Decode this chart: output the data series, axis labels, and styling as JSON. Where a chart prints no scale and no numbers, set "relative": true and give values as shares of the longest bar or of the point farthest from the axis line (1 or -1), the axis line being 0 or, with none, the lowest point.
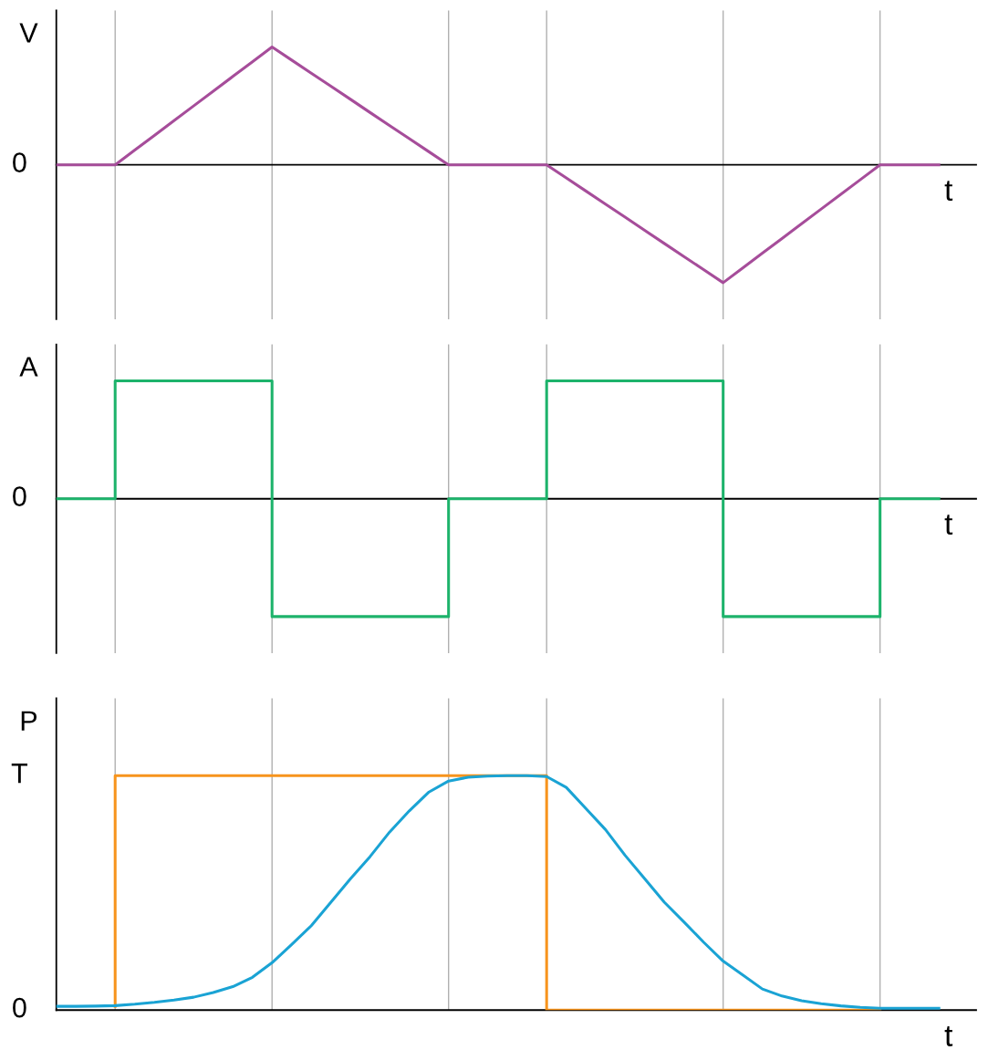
{
  "chart_data": [
    {
      "type": "line",
      "ylabel": "V",
      "xlabel": "t",
      "relative": true,
      "annotations": [
        "0"
      ],
      "tick_labels": false,
      "grid": "x",
      "categories": [
        null,
        null,
        null,
        null,
        null,
        null,
        null,
        null,
        null,
        null,
        null,
        null,
        null,
        null,
        null,
        null,
        null,
        null,
        null,
        null,
        null,
        null,
        null,
        null,
        null,
        null,
        null,
        null,
        null,
        null,
        null,
        null,
        null,
        null,
        null,
        null,
        null,
        null,
        null,
        null,
        null,
        null,
        null,
        null,
        null,
        null
      ],
      "series": [
        {
          "color": "#a64d9a",
          "values": [
            0,
            0,
            0,
            0,
            0.125,
            0.25,
            0.375,
            0.5,
            0.625,
            0.75,
            0.875,
            1,
            0.889,
            0.778,
            0.667,
            0.556,
            0.444,
            0.333,
            0.222,
            0.111,
            0,
            0,
            0,
            0,
            0,
            0,
            -0.111,
            -0.222,
            -0.333,
            -0.444,
            -0.556,
            -0.667,
            -0.778,
            -0.889,
            -1,
            -0.875,
            -0.75,
            -0.625,
            -0.5,
            -0.375,
            -0.25,
            -0.125,
            0,
            0,
            0,
            0
          ]
        }
      ]
    },
    {
      "type": "step",
      "ylabel": "A",
      "xlabel": "t",
      "relative": true,
      "annotations": [
        "0"
      ],
      "tick_labels": false,
      "grid": "x",
      "categories": [
        null,
        null,
        null,
        null,
        null,
        null,
        null,
        null,
        null,
        null,
        null,
        null,
        null,
        null,
        null,
        null,
        null,
        null,
        null,
        null,
        null,
        null,
        null,
        null,
        null,
        null,
        null,
        null,
        null,
        null,
        null,
        null,
        null,
        null,
        null,
        null,
        null,
        null,
        null,
        null,
        null,
        null,
        null,
        null,
        null,
        null
      ],
      "series": [
        {
          "color": "#1db36b",
          "values": [
            0,
            0,
            0,
            0,
            1,
            1,
            1,
            1,
            1,
            1,
            1,
            1,
            -1,
            -1,
            -1,
            -1,
            -1,
            -1,
            -1,
            -1,
            -1,
            0,
            0,
            0,
            0,
            0,
            1,
            1,
            1,
            1,
            1,
            1,
            1,
            1,
            1,
            -1,
            -1,
            -1,
            -1,
            -1,
            -1,
            -1,
            -1,
            0,
            0,
            0
          ]
        }
      ]
    },
    {
      "type": "line",
      "ylabel": "P",
      "xlabel": "t",
      "relative": true,
      "annotations": [
        "0",
        "T"
      ],
      "tick_labels": false,
      "grid": "x",
      "categories": [
        null,
        null,
        null,
        null,
        null,
        null,
        null,
        null,
        null,
        null,
        null,
        null,
        null,
        null,
        null,
        null,
        null,
        null,
        null,
        null,
        null,
        null,
        null,
        null,
        null,
        null,
        null,
        null,
        null,
        null,
        null,
        null,
        null,
        null,
        null,
        null,
        null,
        null,
        null,
        null,
        null,
        null,
        null,
        null,
        null,
        null
      ],
      "series": [
        {
          "type": "step",
          "color": "#f7941d",
          "values": [
            null,
            null,
            null,
            0.016,
            1,
            1,
            1,
            1,
            1,
            1,
            1,
            1,
            1,
            1,
            1,
            1,
            1,
            1,
            1,
            1,
            1,
            1,
            1,
            1,
            1,
            1,
            0,
            0,
            0,
            0,
            0,
            0,
            0,
            0,
            0,
            0,
            0,
            0,
            0,
            0,
            0,
            0,
            0,
            null,
            null,
            null
          ]
        },
        {
          "color": "#1aa3d4",
          "values": [
            0.016,
            0.016,
            0.017,
            0.019,
            0.025,
            0.033,
            0.043,
            0.055,
            0.075,
            0.1,
            0.14,
            0.202,
            0.28,
            0.36,
            0.46,
            0.56,
            0.655,
            0.76,
            0.85,
            0.93,
            0.977,
            0.993,
            0.998,
            1.0,
            1.0,
            0.996,
            0.95,
            0.86,
            0.77,
            0.66,
            0.56,
            0.46,
            0.376,
            0.29,
            0.209,
            0.15,
            0.09,
            0.06,
            0.04,
            0.027,
            0.018,
            0.012,
            0.008,
            0.008,
            0.008,
            0.008
          ]
        }
      ]
    }
  ]
}
